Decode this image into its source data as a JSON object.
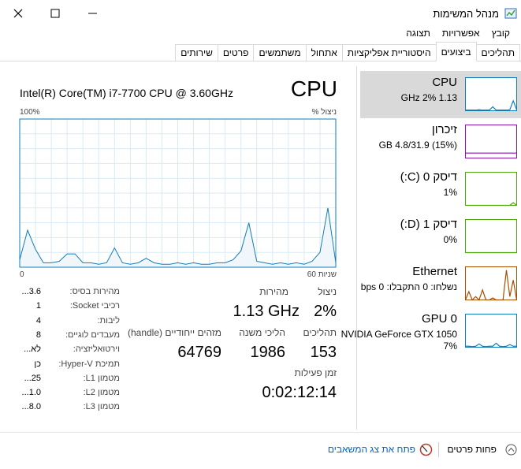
{
  "title_bar": {
    "title": "מנהל המשימות"
  },
  "menu": [
    "קובץ",
    "אפשרויות",
    "תצוגה"
  ],
  "tabs": [
    "תהליכים",
    "ביצועים",
    "היסטוריית אפליקציות",
    "אתחול",
    "משתמשים",
    "פרטים",
    "שירותים"
  ],
  "sidebar": {
    "ylim": [
      0,
      100
    ],
    "items": [
      {
        "name": "CPU",
        "lines": [
          "1.13 GHz 2%"
        ],
        "color": "#117dbb",
        "graph": [
          2,
          2,
          2,
          2,
          3,
          2,
          2,
          2,
          12,
          2,
          2,
          2,
          2,
          3,
          30,
          3
        ]
      },
      {
        "name": "זיכרון",
        "lines": [
          "(15%) 4.8/31.9 GB"
        ],
        "color": "#8b12ae",
        "graph": [
          15,
          15,
          15,
          15,
          15,
          15,
          15,
          15,
          15,
          15,
          15,
          15,
          15,
          15,
          15,
          15
        ]
      },
      {
        "name": "דיסק 0 (C:)",
        "lines": [
          "1%"
        ],
        "color": "#4da60c",
        "graph": [
          0,
          0,
          0,
          0,
          0,
          0,
          0,
          0,
          0,
          0,
          0,
          0,
          0,
          0,
          8,
          0
        ]
      },
      {
        "name": "דיסק 1 (D:)",
        "lines": [
          "0%"
        ],
        "color": "#4da60c",
        "graph": [
          0,
          0,
          0,
          0,
          0,
          0,
          0,
          0,
          0,
          0,
          0,
          0,
          0,
          0,
          0,
          0
        ]
      },
      {
        "name": "Ethernet",
        "lines": [
          "נשלחו: 0 התקבלו: 0 bps"
        ],
        "color": "#a74f01",
        "graph": [
          0,
          25,
          0,
          10,
          0,
          30,
          0,
          0,
          6,
          0,
          0,
          0,
          90,
          10,
          60,
          0
        ]
      },
      {
        "name": "GPU 0",
        "lines": [
          "NVIDIA GeForce GTX 1050",
          "7%"
        ],
        "color": "#117dbb",
        "graph": [
          3,
          3,
          2,
          3,
          10,
          3,
          2,
          3,
          3,
          12,
          3,
          2,
          3,
          8,
          3,
          3
        ]
      }
    ]
  },
  "cpu_panel": {
    "heading": "CPU",
    "processor": "Intel(R) Core(TM) i7-7700 CPU @ 3.60GHz",
    "graph": {
      "y_label": "% ניצול",
      "top_label": "100%",
      "left_label": "0",
      "right_label": "60 שניות",
      "ylim": [
        0,
        100
      ],
      "color": "#117dbb",
      "values": [
        5,
        25,
        12,
        3,
        3,
        4,
        9,
        9,
        3,
        3,
        2,
        3,
        13,
        3,
        2,
        3,
        6,
        3,
        2,
        2,
        3,
        2,
        3,
        2,
        2,
        3,
        3,
        5,
        11,
        30,
        4,
        3,
        2,
        3,
        2,
        3,
        2,
        4,
        10,
        40,
        3
      ]
    },
    "stats": {
      "utilization_label": "ניצול",
      "utilization": "2%",
      "speed_label": "מהירות",
      "speed": "1.13 GHz",
      "processes_label": "תהליכים",
      "processes": 153,
      "threads_label": "הליכי משנה",
      "threads": 1986,
      "handles_label": "מזהים ייחודיים (handle)",
      "handles": 64769,
      "uptime_label": "זמן פעילות",
      "uptime": "0:02:12:14"
    },
    "specs": [
      {
        "label": "מהירות בסיס:",
        "value": "3.6..."
      },
      {
        "label": "רכיבי Socket:",
        "value": "1"
      },
      {
        "label": "ליבות:",
        "value": "4"
      },
      {
        "label": "מעבדים לוגיים:",
        "value": "8"
      },
      {
        "label": "וירטואליזציה:",
        "value": "לא..."
      },
      {
        "label": "תמיכת Hyper-V:",
        "value": "כן"
      },
      {
        "label": "מטמון L1:",
        "value": "25..."
      },
      {
        "label": "מטמון L2:",
        "value": "1.0..."
      },
      {
        "label": "מטמון L3:",
        "value": "8.0..."
      }
    ]
  },
  "footer": {
    "fewer_details": "פחות פרטים",
    "resource_monitor": "פתח את צג המשאבים"
  }
}
